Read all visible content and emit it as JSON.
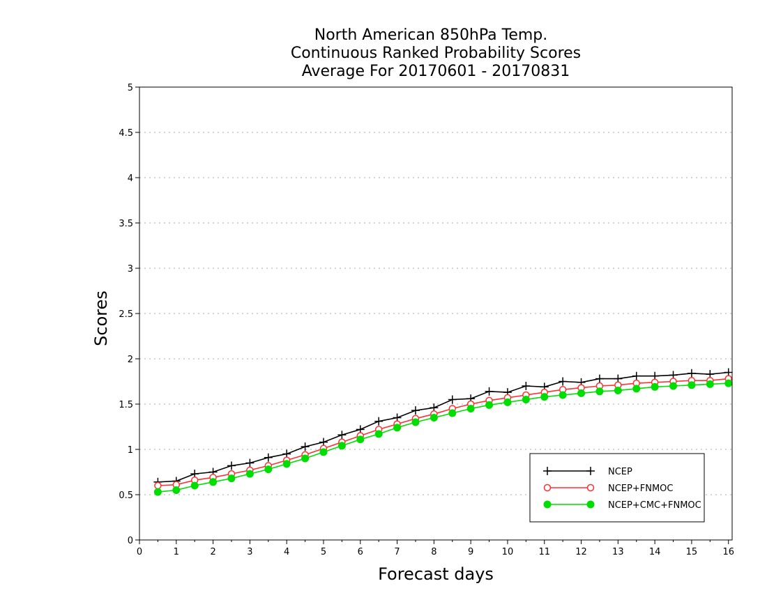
{
  "chart_data": {
    "type": "line",
    "title": [
      "North American 850hPa Temp.",
      "Continuous Ranked Probability Scores",
      "Average For 20170601 - 20170831"
    ],
    "xlabel": "Forecast days",
    "ylabel": "Scores",
    "xlim": [
      0,
      16.1
    ],
    "ylim": [
      0,
      5
    ],
    "xticks": [
      "0",
      "1",
      "2",
      "3",
      "4",
      "5",
      "6",
      "7",
      "8",
      "9",
      "10",
      "11",
      "12",
      "13",
      "14",
      "15",
      "16"
    ],
    "yticks": [
      "0",
      "0.5",
      "1",
      "1.5",
      "2",
      "2.5",
      "3",
      "3.5",
      "4",
      "4.5",
      "5"
    ],
    "grid": true,
    "legend_position": "bottom-right",
    "x": [
      0.5,
      1,
      1.5,
      2,
      2.5,
      3,
      3.5,
      4,
      4.5,
      5,
      5.5,
      6,
      6.5,
      7,
      7.5,
      8,
      8.5,
      9,
      9.5,
      10,
      10.5,
      11,
      11.5,
      12,
      12.5,
      13,
      13.5,
      14,
      14.5,
      15,
      15.5,
      16
    ],
    "series": [
      {
        "name": "NCEP",
        "color": "#000000",
        "marker": "plus",
        "values": [
          0.64,
          0.65,
          0.73,
          0.75,
          0.82,
          0.85,
          0.91,
          0.95,
          1.03,
          1.08,
          1.16,
          1.22,
          1.31,
          1.35,
          1.43,
          1.46,
          1.55,
          1.56,
          1.64,
          1.63,
          1.7,
          1.69,
          1.75,
          1.74,
          1.78,
          1.78,
          1.81,
          1.81,
          1.82,
          1.84,
          1.83,
          1.85
        ]
      },
      {
        "name": "NCEP+FNMOC",
        "color": "#ff3030",
        "marker": "open-circle",
        "values": [
          0.6,
          0.61,
          0.66,
          0.69,
          0.73,
          0.77,
          0.82,
          0.88,
          0.94,
          1.01,
          1.08,
          1.15,
          1.22,
          1.28,
          1.34,
          1.39,
          1.45,
          1.5,
          1.54,
          1.57,
          1.6,
          1.63,
          1.66,
          1.68,
          1.7,
          1.71,
          1.73,
          1.74,
          1.75,
          1.76,
          1.76,
          1.78
        ]
      },
      {
        "name": "NCEP+CMC+FNMOC",
        "color": "#00dd00",
        "marker": "filled-circle",
        "values": [
          0.53,
          0.55,
          0.6,
          0.64,
          0.68,
          0.73,
          0.78,
          0.84,
          0.9,
          0.97,
          1.04,
          1.11,
          1.17,
          1.24,
          1.3,
          1.35,
          1.4,
          1.45,
          1.49,
          1.52,
          1.55,
          1.58,
          1.6,
          1.62,
          1.64,
          1.65,
          1.67,
          1.69,
          1.7,
          1.71,
          1.72,
          1.73
        ]
      }
    ]
  }
}
